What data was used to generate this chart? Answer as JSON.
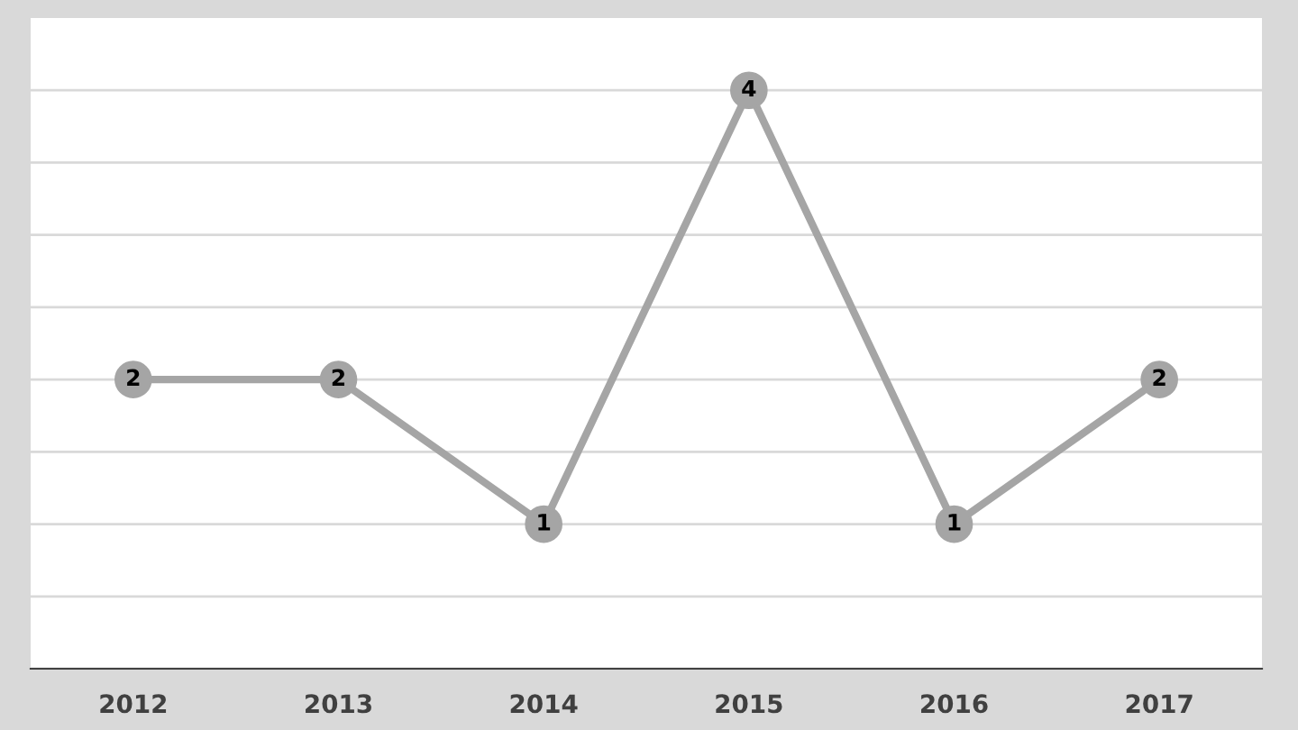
{
  "chart_data": {
    "type": "line",
    "categories": [
      "2012",
      "2013",
      "2014",
      "2015",
      "2016",
      "2017"
    ],
    "series": [
      {
        "color": "#a5a5a5",
        "values": [
          2,
          2,
          1,
          4,
          1,
          2
        ]
      }
    ],
    "ylim": [
      0,
      4.5
    ],
    "yticks": [
      {
        "value": 0,
        "label": null
      },
      {
        "value": 0.5,
        "label": null
      },
      {
        "value": 1,
        "label": null
      },
      {
        "value": 1.5,
        "label": null
      },
      {
        "value": 2,
        "label": null
      },
      {
        "value": 2.5,
        "label": null
      },
      {
        "value": 3,
        "label": null
      },
      {
        "value": 3.5,
        "label": null
      },
      {
        "value": 4,
        "label": null
      }
    ],
    "tick_labels": "x",
    "grid": "y",
    "marker": "circle",
    "line_style": "solid",
    "data_labels": true
  }
}
